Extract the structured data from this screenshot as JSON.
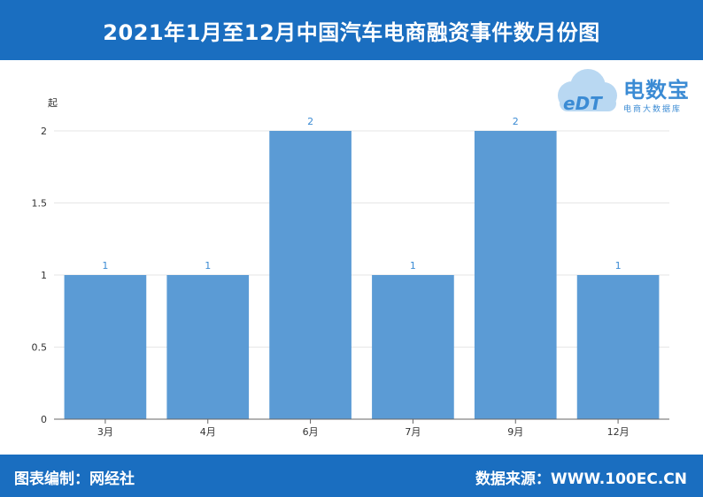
{
  "header": {
    "title": "2021年1月至12月中国汽车电商融资事件数月份图"
  },
  "footer": {
    "left_text": "图表编制：网经社",
    "right_text": "数据来源：WWW.100EC.CN"
  },
  "logo": {
    "mark": "eDT",
    "name": "电数宝",
    "sub": "电商大数据库",
    "brand_color": "#3b8bd4"
  },
  "colors": {
    "header_bg": "#1a6ec0",
    "bar": "#5b9bd5",
    "label": "#3b8bd4"
  },
  "chart_data": {
    "type": "bar",
    "categories": [
      "3月",
      "4月",
      "6月",
      "7月",
      "9月",
      "12月"
    ],
    "values": [
      1,
      1,
      2,
      1,
      2,
      1
    ],
    "unit": "起",
    "ylim": [
      0,
      2
    ],
    "yticks": [
      0,
      0.5,
      1,
      1.5,
      2
    ],
    "grid": true,
    "legend": "none"
  }
}
